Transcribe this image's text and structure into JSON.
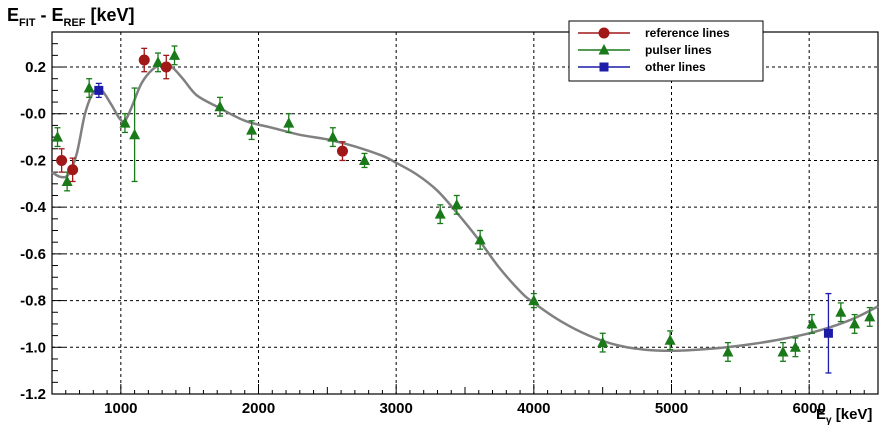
{
  "chart_data": {
    "type": "scatter",
    "ylabel": {
      "main": "E",
      "sub1": "FIT",
      "sep": " - E",
      "sub2": "REF",
      "unit": " [keV]"
    },
    "xlabel": {
      "main": "E",
      "sub": "γ",
      "unit": " [keV]"
    },
    "xlim": [
      500,
      6500
    ],
    "ylim": [
      -1.2,
      0.35
    ],
    "x_ticks": [
      1000,
      2000,
      3000,
      4000,
      5000,
      6000
    ],
    "x_tick_labels": [
      "1000",
      "2000",
      "3000",
      "4000",
      "5000",
      "6000"
    ],
    "y_ticks": [
      0.2,
      0.0,
      -0.2,
      -0.4,
      -0.6,
      -0.8,
      -1.0,
      -1.2
    ],
    "y_tick_labels": [
      "0.2",
      "-0.0",
      "-0.2",
      "-0.4",
      "-0.6",
      "-0.8",
      "-1.0",
      "-1.2"
    ],
    "grid": true,
    "legend_position": "top-right",
    "series": [
      {
        "name": "reference lines",
        "marker": "circle",
        "color": "#a01818",
        "points": [
          {
            "x": 570,
            "y": -0.2,
            "err": 0.05
          },
          {
            "x": 650,
            "y": -0.24,
            "err": 0.05
          },
          {
            "x": 1170,
            "y": 0.23,
            "err": 0.05
          },
          {
            "x": 1330,
            "y": 0.2,
            "err": 0.05
          },
          {
            "x": 2610,
            "y": -0.16,
            "err": 0.04
          }
        ]
      },
      {
        "name": "pulser lines",
        "marker": "triangle",
        "color": "#1a7a1a",
        "points": [
          {
            "x": 540,
            "y": -0.1,
            "err": 0.04
          },
          {
            "x": 610,
            "y": -0.29,
            "err": 0.04
          },
          {
            "x": 770,
            "y": 0.11,
            "err": 0.04
          },
          {
            "x": 1030,
            "y": -0.04,
            "err": 0.04
          },
          {
            "x": 1100,
            "y": -0.09,
            "err": 0.2
          },
          {
            "x": 1270,
            "y": 0.22,
            "err": 0.04
          },
          {
            "x": 1390,
            "y": 0.25,
            "err": 0.04
          },
          {
            "x": 1720,
            "y": 0.03,
            "err": 0.04
          },
          {
            "x": 1950,
            "y": -0.07,
            "err": 0.04
          },
          {
            "x": 2220,
            "y": -0.04,
            "err": 0.04
          },
          {
            "x": 2540,
            "y": -0.1,
            "err": 0.04
          },
          {
            "x": 2770,
            "y": -0.2,
            "err": 0.03
          },
          {
            "x": 3320,
            "y": -0.43,
            "err": 0.04
          },
          {
            "x": 3440,
            "y": -0.39,
            "err": 0.04
          },
          {
            "x": 3610,
            "y": -0.54,
            "err": 0.04
          },
          {
            "x": 4000,
            "y": -0.8,
            "err": 0.03
          },
          {
            "x": 4500,
            "y": -0.98,
            "err": 0.04
          },
          {
            "x": 4990,
            "y": -0.97,
            "err": 0.04
          },
          {
            "x": 5410,
            "y": -1.02,
            "err": 0.04
          },
          {
            "x": 5810,
            "y": -1.02,
            "err": 0.04
          },
          {
            "x": 5900,
            "y": -1.0,
            "err": 0.04
          },
          {
            "x": 6020,
            "y": -0.9,
            "err": 0.04
          },
          {
            "x": 6230,
            "y": -0.85,
            "err": 0.04
          },
          {
            "x": 6330,
            "y": -0.9,
            "err": 0.04
          },
          {
            "x": 6440,
            "y": -0.87,
            "err": 0.04
          }
        ]
      },
      {
        "name": "other lines",
        "marker": "square",
        "color": "#1c1ca8",
        "points": [
          {
            "x": 840,
            "y": 0.1,
            "err": 0.03
          },
          {
            "x": 6140,
            "y": -0.94,
            "err": 0.17
          }
        ]
      }
    ],
    "fit_curve": {
      "color": "#808080",
      "points": [
        [
          500,
          -0.25
        ],
        [
          560,
          -0.27
        ],
        [
          620,
          -0.26
        ],
        [
          680,
          -0.17
        ],
        [
          740,
          0.0
        ],
        [
          800,
          0.09
        ],
        [
          860,
          0.1
        ],
        [
          930,
          0.04
        ],
        [
          990,
          -0.02
        ],
        [
          1030,
          -0.03
        ],
        [
          1080,
          0.03
        ],
        [
          1150,
          0.13
        ],
        [
          1230,
          0.19
        ],
        [
          1300,
          0.21
        ],
        [
          1370,
          0.2
        ],
        [
          1450,
          0.15
        ],
        [
          1550,
          0.08
        ],
        [
          1700,
          0.03
        ],
        [
          1900,
          -0.03
        ],
        [
          2100,
          -0.06
        ],
        [
          2300,
          -0.09
        ],
        [
          2500,
          -0.11
        ],
        [
          2700,
          -0.14
        ],
        [
          2900,
          -0.18
        ],
        [
          3000,
          -0.21
        ],
        [
          3150,
          -0.26
        ],
        [
          3300,
          -0.33
        ],
        [
          3450,
          -0.43
        ],
        [
          3600,
          -0.54
        ],
        [
          3750,
          -0.66
        ],
        [
          3900,
          -0.76
        ],
        [
          4000,
          -0.81
        ],
        [
          4200,
          -0.89
        ],
        [
          4400,
          -0.95
        ],
        [
          4600,
          -0.99
        ],
        [
          4800,
          -1.01
        ],
        [
          5000,
          -1.015
        ],
        [
          5200,
          -1.01
        ],
        [
          5400,
          -1.0
        ],
        [
          5600,
          -0.985
        ],
        [
          5800,
          -0.965
        ],
        [
          6000,
          -0.94
        ],
        [
          6200,
          -0.905
        ],
        [
          6350,
          -0.87
        ],
        [
          6500,
          -0.825
        ]
      ]
    }
  }
}
